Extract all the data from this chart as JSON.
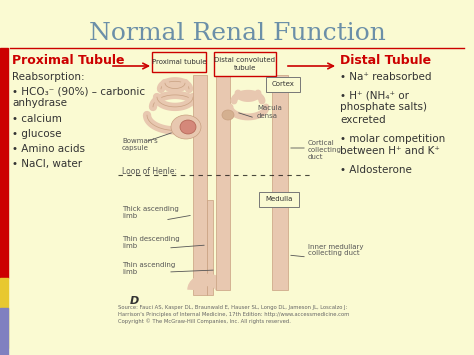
{
  "title": "Normal Renal Function",
  "title_color": "#6b8fa8",
  "bg_color": "#fafad2",
  "left_panel": {
    "header": "Proximal Tubule",
    "header_color": "#cc0000",
    "sub": "Reabsorption:",
    "items": [
      "HCO₃⁻ (90%) – carbonic\nanhydrase",
      "calcium",
      "glucose",
      "Amino acids",
      "NaCl, water"
    ]
  },
  "right_panel": {
    "header": "Distal Tubule",
    "header_color": "#cc0000",
    "items": [
      "Na⁺ reabsorbed",
      "H⁺ (NH₄⁺ or\nphosphate salts)\nexcreted",
      "molar competition\nbetween H⁺ and K⁺",
      "Aldosterone"
    ]
  },
  "source_text": "Source: Fauci AS, Kasper DL, Braunwald E, Hauser SL, Longo DL, Jameson JL, Loscalzo J:\nHarrison's Principles of Internal Medicine, 17th Edition: http://www.accessmedicine.com\nCopyright © The McGraw-Hill Companies, Inc. All rights reserved.",
  "tubule_color": "#e8c8b0",
  "tubule_edge": "#c8a080",
  "glom_color": "#d4887a",
  "separator_color": "#cc0000",
  "arrow_color": "#cc0000",
  "text_color": "#333333",
  "diagram_label_color": "#555555"
}
